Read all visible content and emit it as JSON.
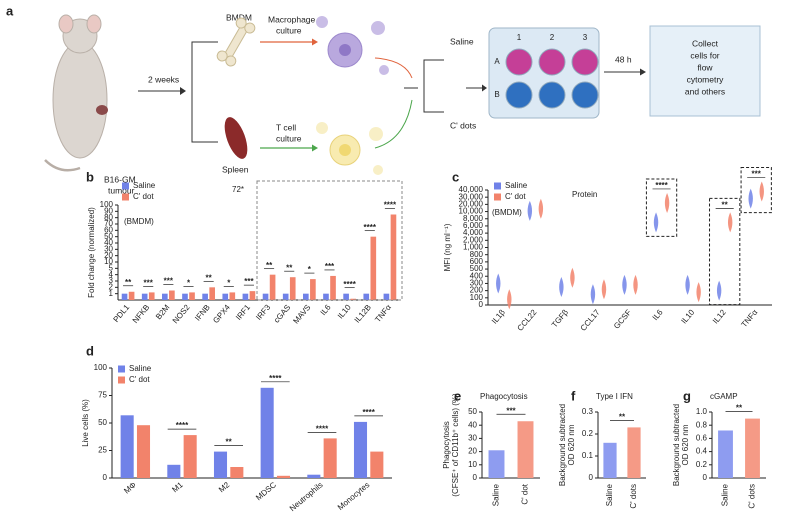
{
  "panel_a": {
    "label": "a",
    "tumour": [
      "B16-GM",
      "tumour"
    ],
    "duration": "2 weeks",
    "bmdm": "BMDM",
    "spleen": "Spleen",
    "macrophage_culture": [
      "Macrophage",
      "culture"
    ],
    "t_cell_culture": [
      "T cell",
      "culture"
    ],
    "saline": "Saline",
    "cdots": "C' dots",
    "columns": [
      "1",
      "2",
      "3"
    ],
    "rows": [
      "A",
      "B"
    ],
    "incubation": "48 h",
    "collect": [
      "Collect",
      "cells for",
      "flow",
      "cytometry",
      "and others"
    ]
  },
  "chart_data": [
    {
      "panel": "b",
      "type": "bar",
      "ylabel": "Fold change (normalized)",
      "annotations": [
        "72*",
        "(BMDM)"
      ],
      "categories": [
        "PDL1",
        "NFKB",
        "B2M",
        "NOS2",
        "IFNB",
        "GPX4",
        "IRF1",
        "IRF3",
        "cGAS",
        "MAVS",
        "IL6",
        "IL10",
        "IL12B",
        "TNFα"
      ],
      "series": [
        {
          "name": "Saline",
          "color": "#7082e8",
          "values": [
            1,
            1,
            1,
            1,
            1,
            1,
            1,
            1,
            1,
            1,
            1,
            1,
            1,
            1
          ]
        },
        {
          "name": "C' dot",
          "color": "#f2836b",
          "values": [
            1.3,
            1.2,
            1.5,
            1.2,
            2,
            1.2,
            1.4,
            4,
            3.6,
            3.3,
            3.8,
            0.2,
            50,
            85
          ]
        }
      ],
      "significance": [
        "**",
        "***",
        "***",
        "*",
        "**",
        "*",
        "***",
        "**",
        "**",
        "*",
        "***",
        "****",
        "****",
        "****"
      ],
      "ylim": [
        0,
        100
      ],
      "yticks": [
        1,
        2,
        3,
        4,
        5,
        10,
        20,
        30,
        40,
        50,
        60,
        70,
        80,
        90,
        100
      ],
      "yscale": "piecewise",
      "legend": "upper left"
    },
    {
      "panel": "c",
      "type": "violin",
      "ylabel": "MFI (ng ml⁻¹)",
      "annotations": [
        "Protein",
        "(BMDM)"
      ],
      "categories": [
        "IL1β",
        "CCL22",
        "TGFβ",
        "CCL17",
        "GCSF",
        "IL6",
        "IL10",
        "IL12",
        "TNFα"
      ],
      "series": [
        {
          "name": "Saline",
          "color": "#7082e8",
          "values": [
            300,
            11000,
            250,
            150,
            280,
            7000,
            280,
            200,
            28000
          ]
        },
        {
          "name": "C' dot",
          "color": "#f2836b",
          "values": [
            80,
            14000,
            380,
            220,
            280,
            22000,
            180,
            7000,
            38000
          ]
        }
      ],
      "significance": [
        null,
        null,
        null,
        null,
        null,
        "****",
        null,
        "**",
        "***"
      ],
      "ylim": [
        0,
        40000
      ],
      "yticks": [
        0,
        100,
        200,
        300,
        400,
        500,
        600,
        800,
        {
          "value": 1000,
          "label": "1,000"
        },
        {
          "value": 2000,
          "label": "2,000"
        },
        {
          "value": 4000,
          "label": "4,000"
        },
        {
          "value": 6000,
          "label": "6,000"
        },
        {
          "value": 8000,
          "label": "8,000"
        },
        {
          "value": 10000,
          "label": "10,000"
        },
        {
          "value": 20000,
          "label": "20,000"
        },
        {
          "value": 30000,
          "label": "30,000"
        },
        {
          "value": 40000,
          "label": "40,000"
        }
      ],
      "yscale": "piecewise",
      "legend": "upper left"
    },
    {
      "panel": "d",
      "type": "bar",
      "ylabel": "Live cells (%)",
      "categories": [
        "MΦ",
        "M1",
        "M2",
        "MDSC",
        "Neutrophils",
        "Monocytes"
      ],
      "series": [
        {
          "name": "Saline",
          "color": "#7082e8",
          "values": [
            57,
            12,
            24,
            82,
            3,
            51
          ]
        },
        {
          "name": "C' dot",
          "color": "#f2836b",
          "values": [
            48,
            39,
            10,
            2,
            36,
            24
          ]
        }
      ],
      "significance": [
        null,
        "****",
        "**",
        "****",
        "****",
        "****"
      ],
      "ylim": [
        0,
        100
      ],
      "yticks": [
        0,
        25,
        50,
        75,
        100
      ],
      "legend": "upper left"
    },
    {
      "panel": "e",
      "type": "bar",
      "title": "Phagocytosis",
      "ylabel": [
        "Phagocytosis",
        "(CFSE⁺ of CD11b⁺ cells) (%)"
      ],
      "categories": [
        "Saline",
        "C' dot"
      ],
      "values": [
        21,
        43
      ],
      "colors": [
        "#8e9cf0",
        "#f59a86"
      ],
      "significance": "***",
      "ylim": [
        0,
        50
      ],
      "yticks": [
        0,
        10,
        20,
        30,
        40,
        50
      ]
    },
    {
      "panel": "f",
      "type": "bar",
      "title": "Type I IFN",
      "ylabel": [
        "Background subtracted",
        "OD 620 nm"
      ],
      "categories": [
        "Saline",
        "C' dots"
      ],
      "values": [
        0.16,
        0.23
      ],
      "colors": [
        "#8e9cf0",
        "#f59a86"
      ],
      "significance": "**",
      "ylim": [
        0,
        0.3
      ],
      "yticks": [
        0,
        0.1,
        0.2,
        0.3
      ]
    },
    {
      "panel": "g",
      "type": "bar",
      "title": "cGAMP",
      "ylabel": [
        "Background subtracted",
        "OD 620 nm"
      ],
      "categories": [
        "Saline",
        "C' dots"
      ],
      "values": [
        0.72,
        0.9
      ],
      "colors": [
        "#8e9cf0",
        "#f59a86"
      ],
      "significance": "**",
      "ylim": [
        0,
        1
      ],
      "yticks": [
        0,
        0.2,
        0.4,
        0.6,
        0.8,
        {
          "value": 1,
          "label": "1.0"
        }
      ]
    }
  ]
}
